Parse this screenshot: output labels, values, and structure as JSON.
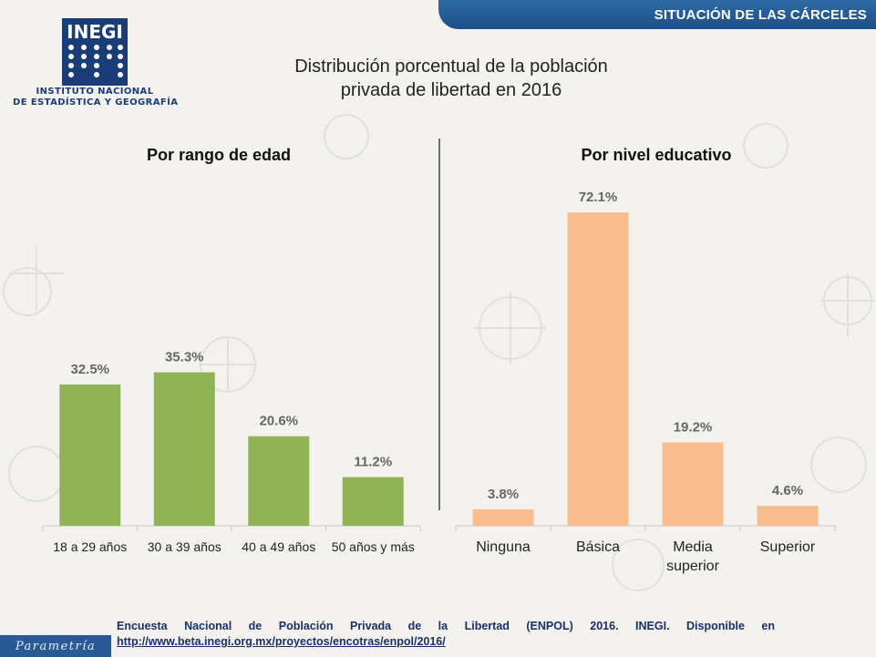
{
  "header": {
    "section_title": "SITUACIÓN DE LAS CÁRCELES"
  },
  "logo": {
    "wordmark": "INEGI",
    "caption_line1": "INSTITUTO NACIONAL",
    "caption_line2": "DE ESTADÍSTICA Y GEOGRAFÍA"
  },
  "title_line1": "Distribución porcentual de la población",
  "title_line2": "privada de libertad en 2016",
  "colors": {
    "age_bars": "#8fb355",
    "education_bars": "#f8bd8f",
    "header_blue": "#1d4f86",
    "footer_text": "#1a2f6a"
  },
  "chart_data": [
    {
      "type": "bar",
      "title": "Por rango de edad",
      "categories": [
        "18 a 29 años",
        "30 a 39 años",
        "40 a 49 años",
        "50 años y más"
      ],
      "values": [
        32.5,
        35.3,
        20.6,
        11.2
      ],
      "value_labels": [
        "32.5%",
        "35.3%",
        "20.6%",
        "11.2%"
      ],
      "ylim": [
        0,
        80
      ],
      "grid": false
    },
    {
      "type": "bar",
      "title": "Por nivel educativo",
      "categories": [
        "Ninguna",
        "Básica",
        "Media superior",
        "Superior"
      ],
      "category_lines": [
        [
          "Ninguna"
        ],
        [
          "Básica"
        ],
        [
          "Media",
          "superior"
        ],
        [
          "Superior"
        ]
      ],
      "values": [
        3.8,
        72.1,
        19.2,
        4.6
      ],
      "value_labels": [
        "3.8%",
        "72.1%",
        "19.2%",
        "4.6%"
      ],
      "ylim": [
        0,
        80
      ],
      "grid": false
    }
  ],
  "footer": {
    "source_text": "Encuesta Nacional de Población Privada de la Libertad (ENPOL) 2016. INEGI. Disponible en",
    "source_link": "http://www.beta.inegi.org.mx/proyectos/encotras/enpol/2016/"
  },
  "brand": {
    "watermark": "Parametría"
  }
}
